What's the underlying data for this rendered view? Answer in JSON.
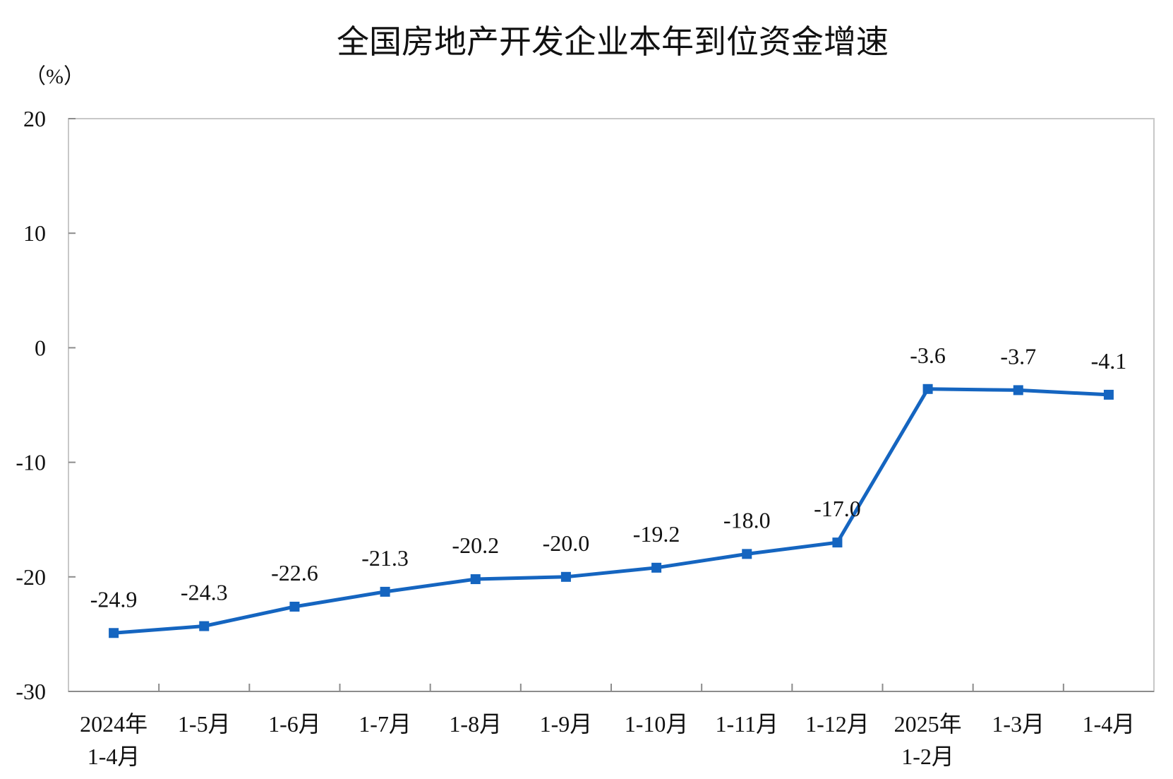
{
  "chart_data": {
    "type": "line",
    "title": "全国房地产开发企业本年到位资金增速",
    "ylabel": "（%）",
    "xlabel": "",
    "ylim": [
      -30,
      20
    ],
    "yticks": [
      20,
      10,
      0,
      -10,
      -20,
      -30
    ],
    "categories": [
      [
        "2024年",
        "1-4月"
      ],
      [
        "1-5月"
      ],
      [
        "1-6月"
      ],
      [
        "1-7月"
      ],
      [
        "1-8月"
      ],
      [
        "1-9月"
      ],
      [
        "1-10月"
      ],
      [
        "1-11月"
      ],
      [
        "1-12月"
      ],
      [
        "2025年",
        "1-2月"
      ],
      [
        "1-3月"
      ],
      [
        "1-4月"
      ]
    ],
    "series": [
      {
        "values": [
          -24.9,
          -24.3,
          -22.6,
          -21.3,
          -20.2,
          -20.0,
          -19.2,
          -18.0,
          -17.0,
          -3.6,
          -3.7,
          -4.1
        ],
        "labels": [
          "-24.9",
          "-24.3",
          "-22.6",
          "-21.3",
          "-20.2",
          "-20.0",
          "-19.2",
          "-18.0",
          "-17.0",
          "-3.6",
          "-3.7",
          "-4.1"
        ],
        "color": "#1565c0"
      }
    ],
    "grid": false,
    "legend": "none"
  }
}
